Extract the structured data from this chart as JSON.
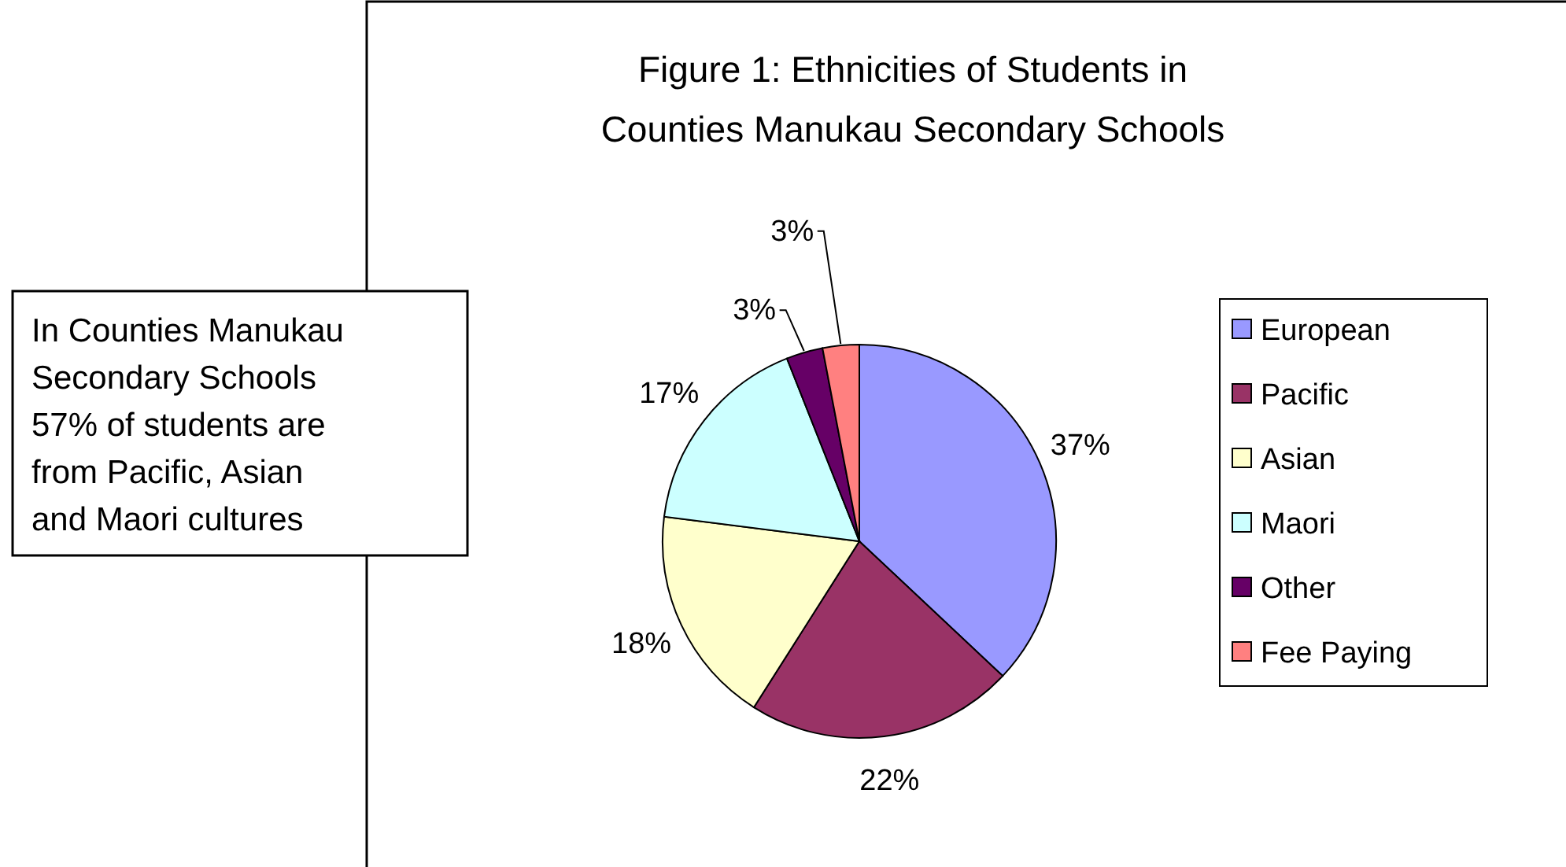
{
  "chart_data": {
    "type": "pie",
    "title": "Figure 1: Ethnicities of Students in Counties Manukau Secondary Schools",
    "categories": [
      "European",
      "Pacific",
      "Asian",
      "Maori",
      "Other",
      "Fee Paying"
    ],
    "values": [
      37,
      22,
      18,
      17,
      3,
      3
    ],
    "value_labels": [
      "37%",
      "22%",
      "18%",
      "17%",
      "3%",
      "3%"
    ],
    "colors": [
      "#9999ff",
      "#993366",
      "#ffffcc",
      "#ccffff",
      "#660066",
      "#ff8080"
    ],
    "legend": "right",
    "annotations": [
      "In Counties Manukau Secondary Schools  57% of students are from Pacific, Asian and Maori cultures"
    ]
  }
}
